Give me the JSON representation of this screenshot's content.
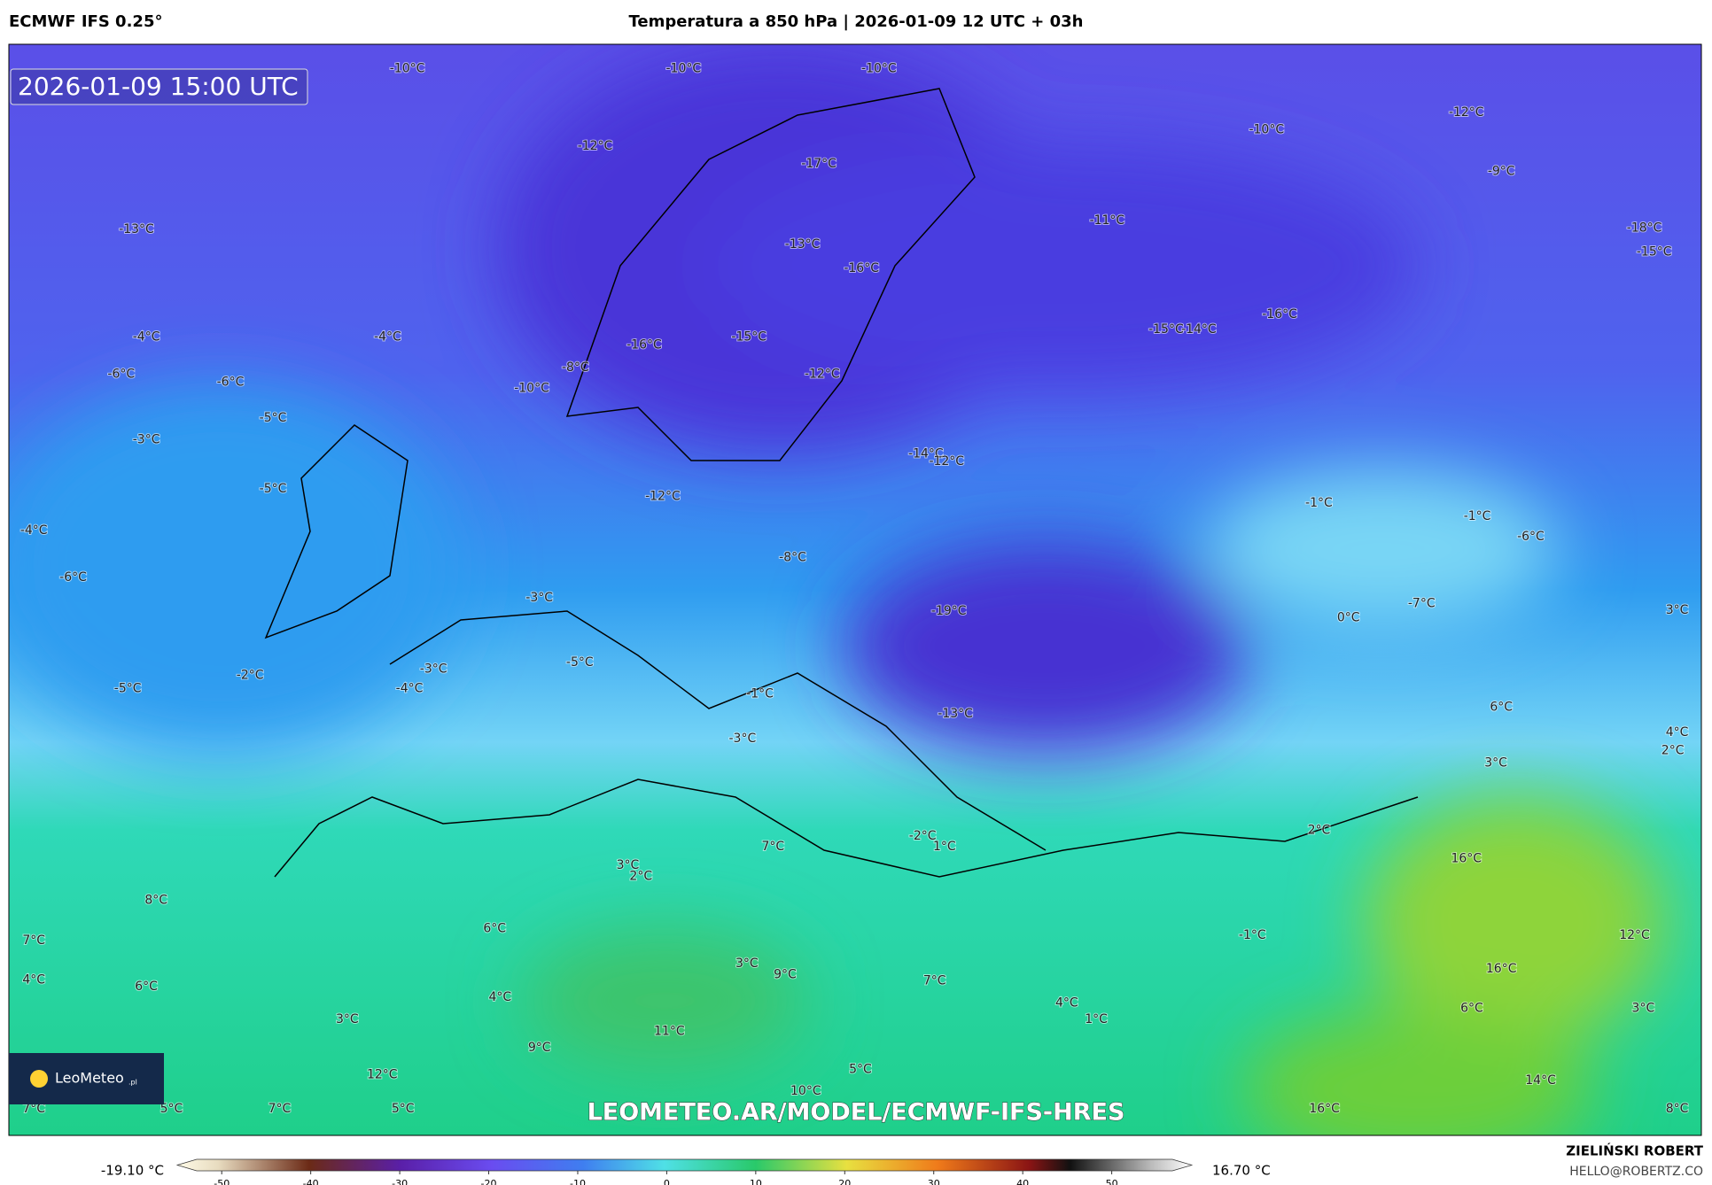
{
  "header": {
    "left": "ECMWF IFS 0.25°",
    "title": "Temperatura a 850 hPa | 2026-01-09 12 UTC + 03h"
  },
  "map": {
    "timestamp": "2026-01-09 15:00 UTC",
    "watermark": "LEOMETEO.AR/MODEL/ECMWF-IFS-HRES",
    "logo": "LeoMeteo",
    "logo_suffix": ".pl",
    "labels": [
      "-10°C",
      "-10°C",
      "-10°C",
      "-12°C",
      "-17°C",
      "-13°C",
      "-10°C",
      "-12°C",
      "-9°C",
      "-11°C",
      "-13°C",
      "-16°C",
      "-18°C",
      "-15°C",
      "-4°C",
      "-4°C",
      "-16°C",
      "-15°C",
      "-15°C",
      "-14°C",
      "-16°C",
      "-6°C",
      "-6°C",
      "-8°C",
      "-10°C",
      "-12°C",
      "-5°C",
      "-3°C",
      "-14°C",
      "-12°C",
      "-5°C",
      "-12°C",
      "-1°C",
      "-1°C",
      "-6°C",
      "-4°C",
      "-8°C",
      "-6°C",
      "-3°C",
      "-19°C",
      "-7°C",
      "0°C",
      "3°C",
      "-3°C",
      "-5°C",
      "-2°C",
      "-5°C",
      "-4°C",
      "-1°C",
      "-13°C",
      "6°C",
      "-3°C",
      "4°C",
      "2°C",
      "3°C",
      "2°C",
      "-2°C",
      "1°C",
      "7°C",
      "16°C",
      "3°C",
      "2°C",
      "8°C",
      "6°C",
      "-1°C",
      "12°C",
      "7°C",
      "3°C",
      "9°C",
      "16°C",
      "4°C",
      "6°C",
      "7°C",
      "4°C",
      "4°C",
      "6°C",
      "3°C",
      "3°C",
      "1°C",
      "11°C",
      "9°C",
      "5°C",
      "12°C",
      "14°C",
      "10°C",
      "7°C",
      "5°C",
      "7°C",
      "5°C",
      "16°C",
      "8°C"
    ]
  },
  "colorbar": {
    "min_label": "-19.10 °C",
    "max_label": "16.70 °C",
    "lim": [
      -55,
      59
    ],
    "ticks": [
      -50,
      -40,
      -30,
      -20,
      -10,
      0,
      10,
      20,
      30,
      40,
      50
    ]
  },
  "credit": {
    "name": "ZIELIŃSKI ROBERT",
    "email": "HELLO@ROBERTZ.CO"
  }
}
